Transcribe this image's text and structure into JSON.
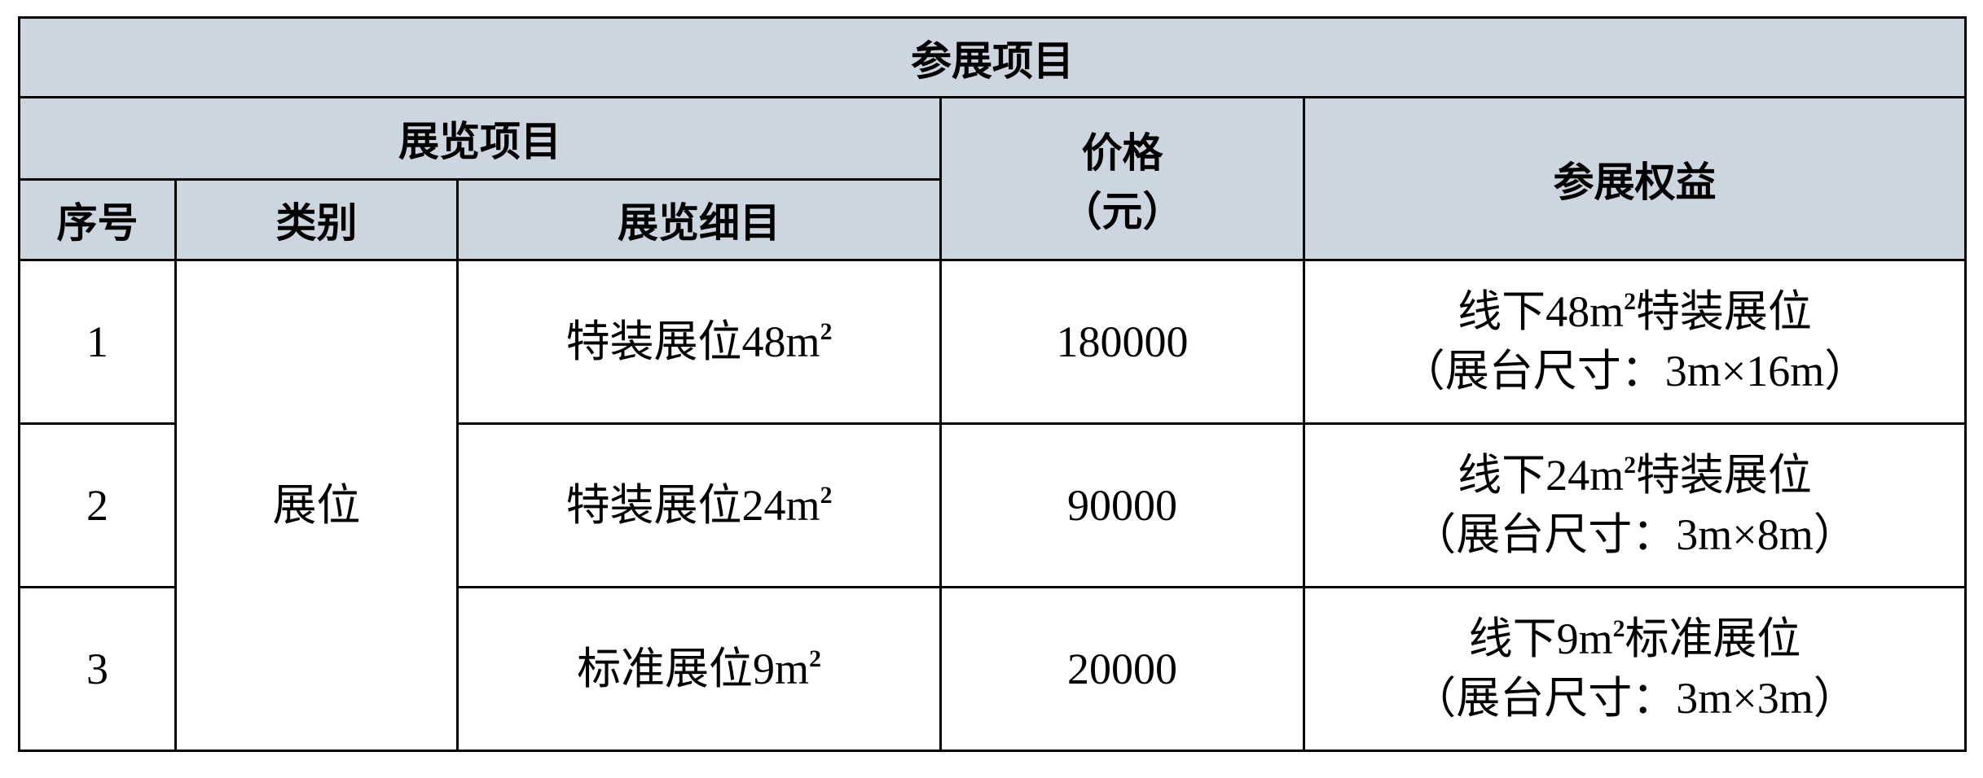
{
  "table": {
    "title": "参展项目",
    "group_header": "展览项目",
    "price_header_line1": "价格",
    "price_header_line2": "（元）",
    "benefits_header": "参展权益",
    "col_headers": {
      "index": "序号",
      "category": "类别",
      "detail": "展览细目"
    },
    "category_value": "展位",
    "rows": [
      {
        "index": "1",
        "detail": "特装展位48m",
        "detail_sup": "2",
        "price": "180000",
        "benefit_line1_pre": "线下48m",
        "benefit_sup": "2",
        "benefit_line1_post": "特装展位",
        "benefit_line2": "（展台尺寸：3m×16m）"
      },
      {
        "index": "2",
        "detail": "特装展位24m",
        "detail_sup": "2",
        "price": "90000",
        "benefit_line1_pre": "线下24m",
        "benefit_sup": "2",
        "benefit_line1_post": "特装展位",
        "benefit_line2": "（展台尺寸：3m×8m）"
      },
      {
        "index": "3",
        "detail": "标准展位9m",
        "detail_sup": "2",
        "price": "20000",
        "benefit_line1_pre": "线下9m",
        "benefit_sup": "2",
        "benefit_line1_post": "标准展位",
        "benefit_line2": "（展台尺寸：3m×3m）"
      }
    ]
  },
  "colors": {
    "header_bg": "#cdd5df",
    "border": "#000000"
  }
}
